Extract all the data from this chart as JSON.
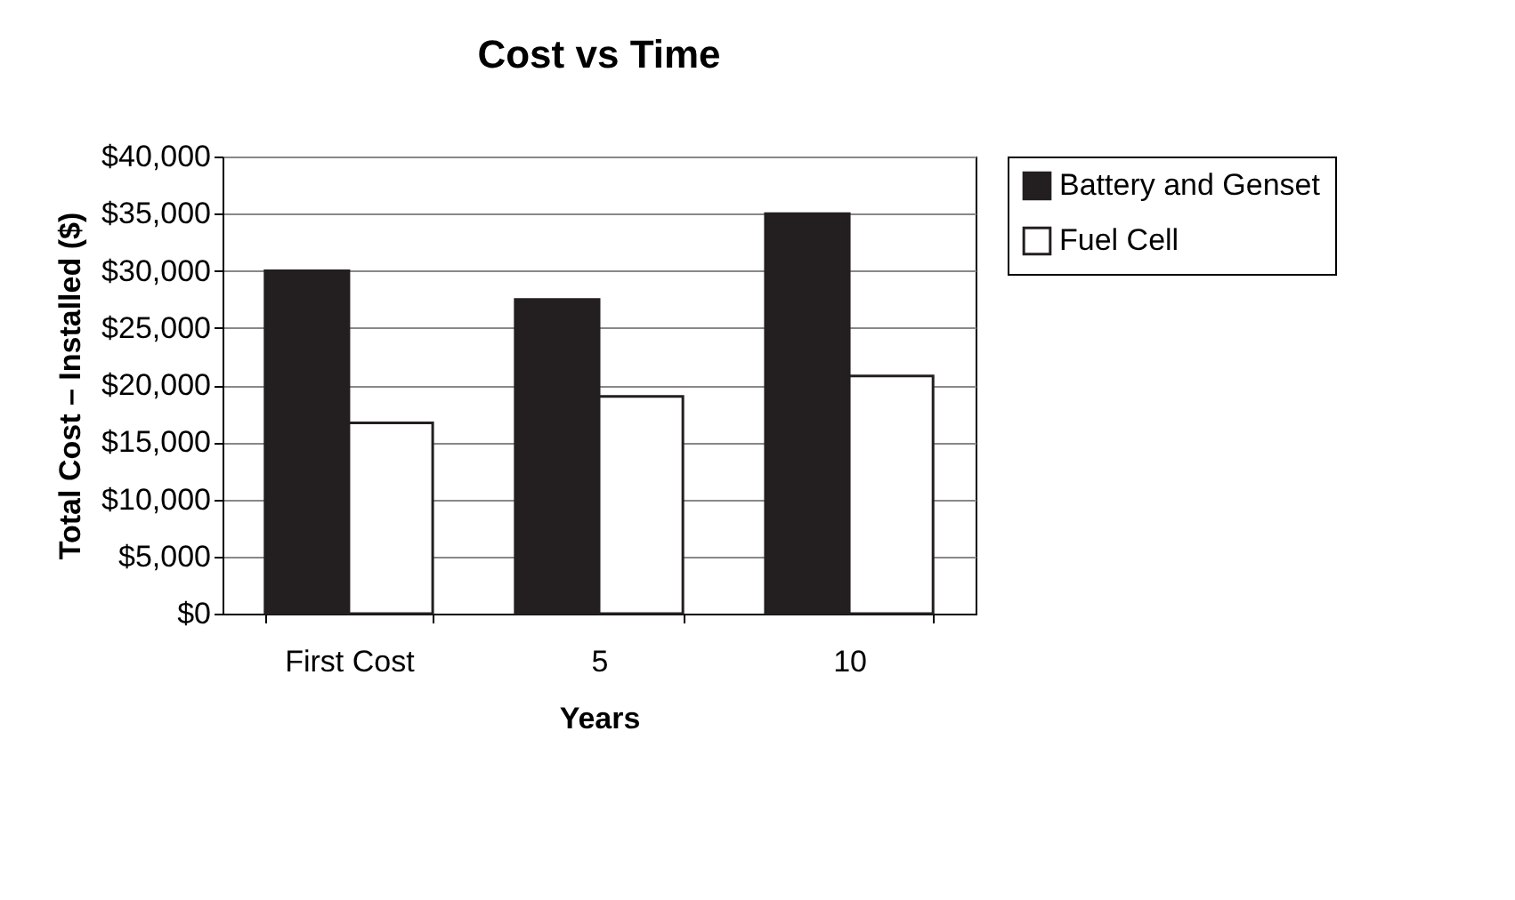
{
  "chart_data": {
    "type": "bar",
    "title": "Cost vs Time",
    "xlabel": "Years",
    "ylabel": "Total Cost – Installed ($)",
    "categories": [
      "First Cost",
      "5",
      "10"
    ],
    "series": [
      {
        "name": "Battery and Genset",
        "color": "#231f20",
        "values": [
          30000,
          27500,
          35000
        ]
      },
      {
        "name": "Fuel Cell",
        "color": "#ffffff",
        "values": [
          16700,
          19000,
          20800
        ]
      }
    ],
    "ylim": [
      0,
      40000
    ],
    "yticks": [
      {
        "value": 0,
        "label": "$0"
      },
      {
        "value": 5000,
        "label": "$5,000"
      },
      {
        "value": 10000,
        "label": "$10,000"
      },
      {
        "value": 15000,
        "label": "$15,000"
      },
      {
        "value": 20000,
        "label": "$20,000"
      },
      {
        "value": 25000,
        "label": "$25,000"
      },
      {
        "value": 30000,
        "label": "$30,000"
      },
      {
        "value": 35000,
        "label": "$35,000"
      },
      {
        "value": 40000,
        "label": "$40,000"
      }
    ],
    "grid": "y",
    "legend": "right"
  }
}
